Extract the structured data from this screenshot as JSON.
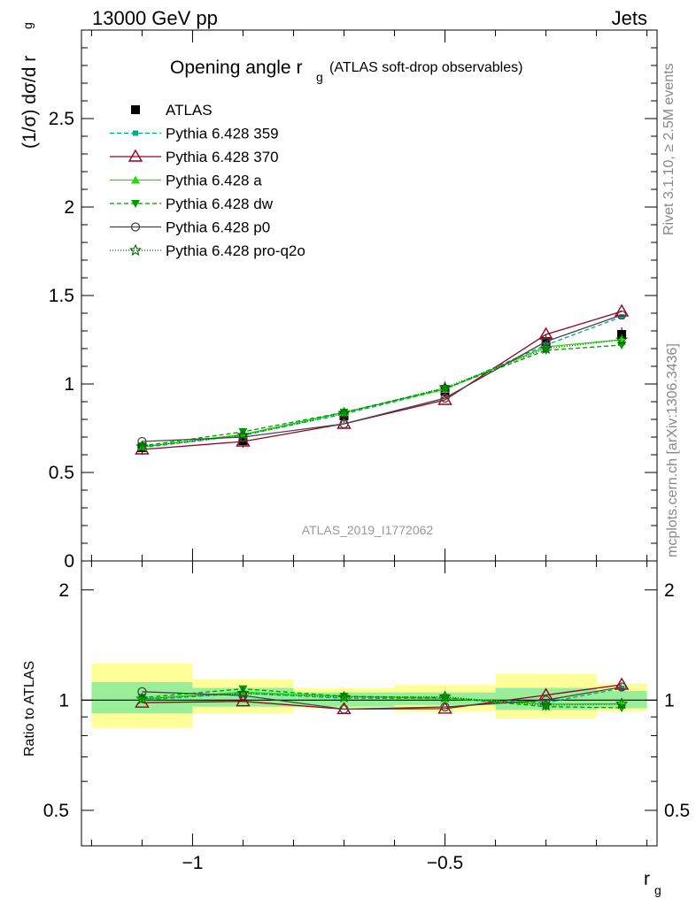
{
  "header": {
    "left": "13000 GeV pp",
    "right": "Jets"
  },
  "title": {
    "main": "Opening angle r",
    "sub": "g",
    "extra": "(ATLAS soft-drop observables)"
  },
  "ylabel_top": "(1/σ) dσ/d r",
  "ylabel_top_sub": "g",
  "ylabel_bottom": "Ratio to ATLAS",
  "xlabel": "r",
  "xlabel_sub": "g",
  "side_right_top": "Rivet 3.1.10, ≥ 2.5M events",
  "side_right_bottom": "mcplots.cern.ch [arXiv:1306.3436]",
  "watermark": "ATLAS_2019_I1772062",
  "axes": {
    "x_ticks": [
      "−1",
      "−0.5"
    ],
    "x_tick_values": [
      -1,
      -0.5
    ],
    "y_top_ticks": [
      "0",
      "0.5",
      "1",
      "1.5",
      "2",
      "2.5"
    ],
    "y_top_tick_values": [
      0,
      0.5,
      1,
      1.5,
      2,
      2.5
    ],
    "y_bottom_ticks": [
      "0.5",
      "1",
      "2"
    ],
    "y_bottom_tick_values": [
      0.5,
      1,
      2
    ]
  },
  "chart_data": {
    "type": "line",
    "xlim": [
      -1.22,
      -0.08
    ],
    "ylim_top": [
      0,
      3.0
    ],
    "ylim_ratio": [
      0.4,
      2.4
    ],
    "ratio_log_scale": true,
    "bins": [
      [
        -1.2,
        -1.0
      ],
      [
        -1.0,
        -0.8
      ],
      [
        -0.8,
        -0.6
      ],
      [
        -0.6,
        -0.4
      ],
      [
        -0.4,
        -0.2
      ],
      [
        -0.2,
        -0.1
      ]
    ],
    "x": [
      -1.1,
      -0.9,
      -0.7,
      -0.5,
      -0.3,
      -0.15
    ],
    "data": {
      "name": "ATLAS",
      "values": [
        0.64,
        0.68,
        0.82,
        0.96,
        1.24,
        1.28
      ]
    },
    "band_green": [
      [
        0.92,
        1.12
      ],
      [
        0.96,
        1.08
      ],
      [
        0.96,
        1.05
      ],
      [
        0.97,
        1.05
      ],
      [
        0.94,
        1.08
      ],
      [
        0.95,
        1.06
      ]
    ],
    "band_yellow": [
      [
        0.84,
        1.26
      ],
      [
        0.92,
        1.14
      ],
      [
        0.95,
        1.08
      ],
      [
        0.93,
        1.1
      ],
      [
        0.89,
        1.18
      ],
      [
        0.93,
        1.11
      ]
    ],
    "series": [
      {
        "name": "Pythia 6.428 359",
        "color": "#00aa88",
        "dash": "5,3",
        "marker": "square-small",
        "values": [
          0.64,
          0.71,
          0.83,
          0.97,
          1.22,
          1.38
        ]
      },
      {
        "name": "Pythia 6.428 370",
        "color": "#990022",
        "dash": "",
        "marker": "triangle-open",
        "values": [
          0.63,
          0.675,
          0.775,
          0.91,
          1.28,
          1.41
        ]
      },
      {
        "name": "Pythia 6.428 a",
        "color": "#22dd00",
        "dash": "",
        "marker": "triangle-filled",
        "values": [
          0.645,
          0.715,
          0.84,
          0.97,
          1.21,
          1.25
        ]
      },
      {
        "name": "Pythia 6.428 dw",
        "color": "#009900",
        "dash": "5,3",
        "marker": "triangle-down-filled",
        "values": [
          0.65,
          0.73,
          0.84,
          0.975,
          1.19,
          1.22
        ]
      },
      {
        "name": "Pythia 6.428 p0",
        "color": "#444444",
        "dash": "",
        "marker": "circle-open",
        "values": [
          0.675,
          0.7,
          0.775,
          0.92,
          1.24,
          1.39
        ]
      },
      {
        "name": "Pythia 6.428 pro-q2o",
        "color": "#006600",
        "dash": "1,2",
        "marker": "star",
        "values": [
          0.645,
          0.71,
          0.835,
          0.98,
          1.2,
          1.25
        ]
      }
    ]
  }
}
